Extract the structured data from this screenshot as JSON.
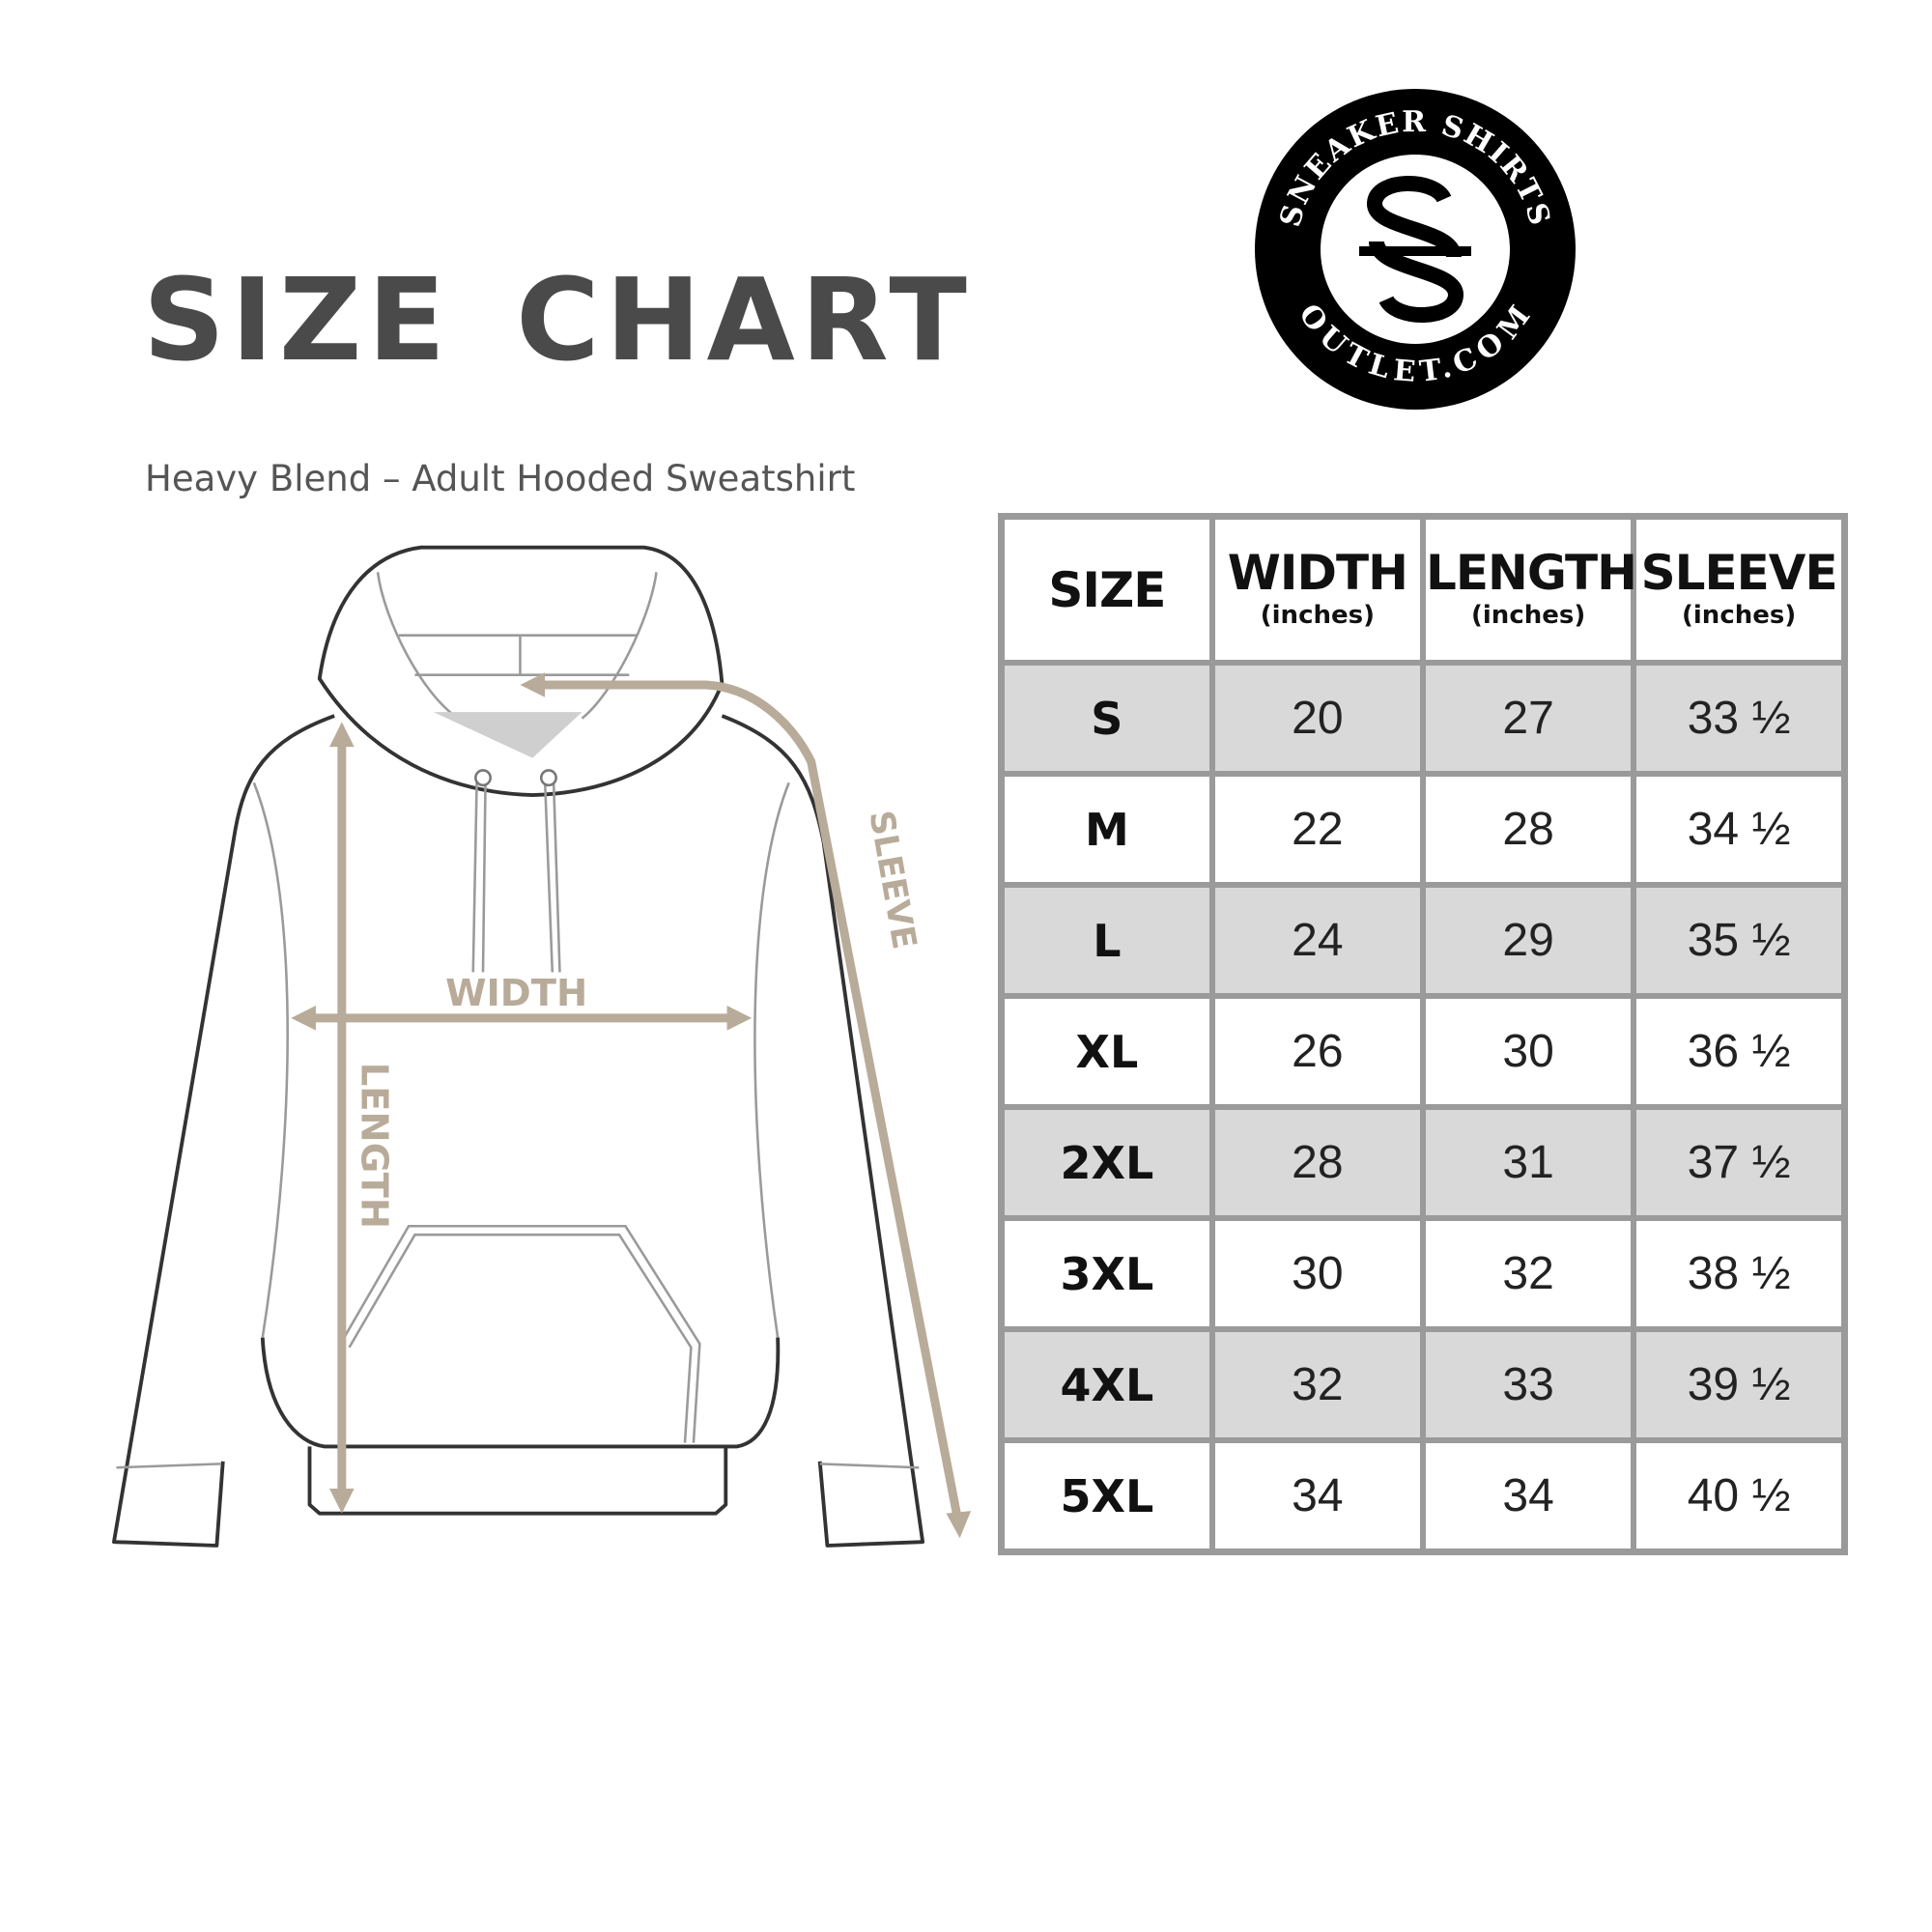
{
  "header": {
    "title": "SIZE CHART",
    "subtitle": "Heavy Blend – Adult Hooded Sweatshirt"
  },
  "logo": {
    "top_text": "SNEAKER SHIRTS",
    "bottom_text": "OUTLET.COM",
    "monogram": "SS"
  },
  "diagram": {
    "width_label": "WIDTH",
    "length_label": "LENGTH",
    "sleeve_label": "SLEEVE",
    "arrow_color": "#b8ab99"
  },
  "table": {
    "columns": [
      {
        "label": "SIZE",
        "unit": ""
      },
      {
        "label": "WIDTH",
        "unit": "(inches)"
      },
      {
        "label": "LENGTH",
        "unit": "(inches)"
      },
      {
        "label": "SLEEVE",
        "unit": "(inches)"
      }
    ],
    "rows": [
      {
        "size": "S",
        "width": "20",
        "length": "27",
        "sleeve": "33 ½"
      },
      {
        "size": "M",
        "width": "22",
        "length": "28",
        "sleeve": "34 ½"
      },
      {
        "size": "L",
        "width": "24",
        "length": "29",
        "sleeve": "35 ½"
      },
      {
        "size": "XL",
        "width": "26",
        "length": "30",
        "sleeve": "36 ½"
      },
      {
        "size": "2XL",
        "width": "28",
        "length": "31",
        "sleeve": "37 ½"
      },
      {
        "size": "3XL",
        "width": "30",
        "length": "32",
        "sleeve": "38 ½"
      },
      {
        "size": "4XL",
        "width": "32",
        "length": "33",
        "sleeve": "39 ½"
      },
      {
        "size": "5XL",
        "width": "34",
        "length": "34",
        "sleeve": "40 ½"
      }
    ],
    "shade_color": "#d9d9d9",
    "border_color": "#9a9a9a"
  }
}
